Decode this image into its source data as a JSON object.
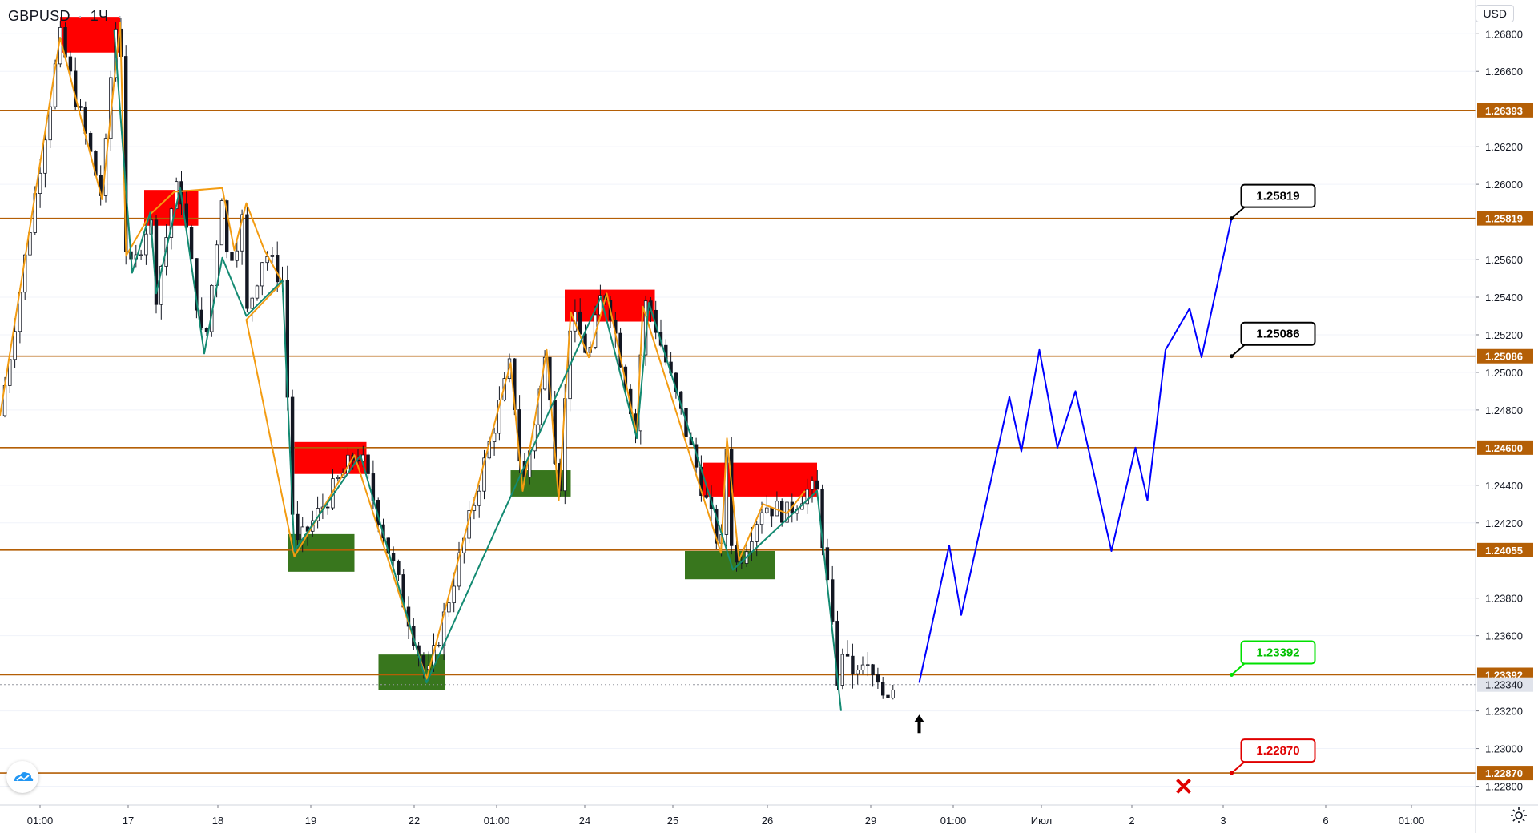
{
  "header": {
    "symbol": "GBPUSD",
    "interval": "1Ч",
    "separator": "·",
    "currency": "USD"
  },
  "chart_data": {
    "type": "candlestick",
    "symbol": "GBPUSD",
    "interval": "1Ч",
    "ylim": [
      1.227,
      1.2698
    ],
    "y_ticks": [
      "1.26800",
      "1.26600",
      "1.26200",
      "1.26000",
      "1.25600",
      "1.25400",
      "1.25200",
      "1.25000",
      "1.24800",
      "1.24400",
      "1.24200",
      "1.23800",
      "1.23600",
      "1.23200",
      "1.23000",
      "1.22800"
    ],
    "x_ticks": [
      "01:00",
      "17",
      "18",
      "19",
      "22",
      "01:00",
      "24",
      "25",
      "26",
      "29",
      "01:00",
      "Июл",
      "2",
      "3",
      "6",
      "01:00"
    ],
    "levels": [
      {
        "label": "1.26393",
        "value": 1.26393
      },
      {
        "label": "1.25819",
        "value": 1.25819
      },
      {
        "label": "1.25086",
        "value": 1.25086
      },
      {
        "label": "1.24600",
        "value": 1.246
      },
      {
        "label": "1.24055",
        "value": 1.24055
      },
      {
        "label": "1.23392",
        "value": 1.23392
      },
      {
        "label": "1.22870",
        "value": 1.2287
      }
    ],
    "last_price": {
      "label": "1.23340",
      "value": 1.2334
    },
    "callouts": [
      {
        "label": "1.25819",
        "value": 1.25819,
        "color": "#000000"
      },
      {
        "label": "1.25086",
        "value": 1.25086,
        "color": "#000000"
      },
      {
        "label": "1.23392",
        "value": 1.23392,
        "color": "#00e000"
      },
      {
        "label": "1.22870",
        "value": 1.2287,
        "color": "#e00000"
      }
    ],
    "supply_zones": [
      {
        "t0": 0.05,
        "t1": 0.1,
        "y0": 1.267,
        "y1": 1.2689
      },
      {
        "t0": 0.12,
        "t1": 0.165,
        "y0": 1.2578,
        "y1": 1.2597
      },
      {
        "t0": 0.245,
        "t1": 0.305,
        "y0": 1.2446,
        "y1": 1.2463
      },
      {
        "t0": 0.47,
        "t1": 0.545,
        "y0": 1.2527,
        "y1": 1.2544
      },
      {
        "t0": 0.585,
        "t1": 0.68,
        "y0": 1.2434,
        "y1": 1.2452
      }
    ],
    "demand_zones": [
      {
        "t0": 0.24,
        "t1": 0.295,
        "y0": 1.2394,
        "y1": 1.2414
      },
      {
        "t0": 0.315,
        "t1": 0.37,
        "y0": 1.2331,
        "y1": 1.235
      },
      {
        "t0": 0.425,
        "t1": 0.475,
        "y0": 1.2434,
        "y1": 1.2448
      },
      {
        "t0": 0.57,
        "t1": 0.645,
        "y0": 1.239,
        "y1": 1.2405
      }
    ],
    "wave_orange": [
      [
        0.0,
        1.2477
      ],
      [
        0.05,
        1.2678
      ],
      [
        0.085,
        1.2592
      ],
      [
        0.1,
        1.2686
      ],
      [
        0.105,
        1.2562
      ],
      [
        0.125,
        1.2584
      ],
      [
        0.145,
        1.2596
      ],
      [
        0.185,
        1.2598
      ],
      [
        0.195,
        1.2565
      ],
      [
        0.205,
        1.259
      ],
      [
        0.22,
        1.2565
      ],
      [
        0.235,
        1.2548
      ],
      [
        0.205,
        1.2528
      ],
      [
        0.245,
        1.2402
      ],
      [
        0.295,
        1.2456
      ],
      [
        0.355,
        1.2337
      ],
      [
        0.425,
        1.2505
      ],
      [
        0.435,
        1.2437
      ],
      [
        0.455,
        1.2512
      ],
      [
        0.465,
        1.2432
      ],
      [
        0.475,
        1.2532
      ],
      [
        0.49,
        1.2508
      ],
      [
        0.505,
        1.2542
      ],
      [
        0.53,
        1.2467
      ],
      [
        0.535,
        1.2535
      ],
      [
        0.6,
        1.2404
      ],
      [
        0.605,
        1.2465
      ],
      [
        0.615,
        1.24
      ],
      [
        0.635,
        1.243
      ],
      [
        0.655,
        1.2425
      ],
      [
        0.67,
        1.2437
      ]
    ],
    "wave_teal": [
      [
        0.095,
        1.2682
      ],
      [
        0.11,
        1.2553
      ],
      [
        0.125,
        1.2585
      ],
      [
        0.13,
        1.2542
      ],
      [
        0.15,
        1.2598
      ],
      [
        0.17,
        1.251
      ],
      [
        0.185,
        1.2561
      ],
      [
        0.205,
        1.253
      ],
      [
        0.235,
        1.2549
      ],
      [
        0.245,
        1.2405
      ],
      [
        0.3,
        1.2456
      ],
      [
        0.355,
        1.2335
      ],
      [
        0.5,
        1.254
      ],
      [
        0.53,
        1.2465
      ],
      [
        0.54,
        1.2537
      ],
      [
        0.61,
        1.2395
      ],
      [
        0.68,
        1.2437
      ],
      [
        0.7,
        1.232
      ]
    ],
    "forecast": [
      [
        0.765,
        1.2335
      ],
      [
        0.79,
        1.2408
      ],
      [
        0.8,
        1.2371
      ],
      [
        0.84,
        1.2487
      ],
      [
        0.85,
        1.2458
      ],
      [
        0.865,
        1.2512
      ],
      [
        0.88,
        1.246
      ],
      [
        0.895,
        1.249
      ],
      [
        0.925,
        1.2405
      ],
      [
        0.945,
        1.246
      ],
      [
        0.955,
        1.2432
      ],
      [
        0.97,
        1.2512
      ],
      [
        0.99,
        1.2534
      ],
      [
        1.0,
        1.2508
      ],
      [
        1.025,
        1.2582
      ]
    ]
  }
}
